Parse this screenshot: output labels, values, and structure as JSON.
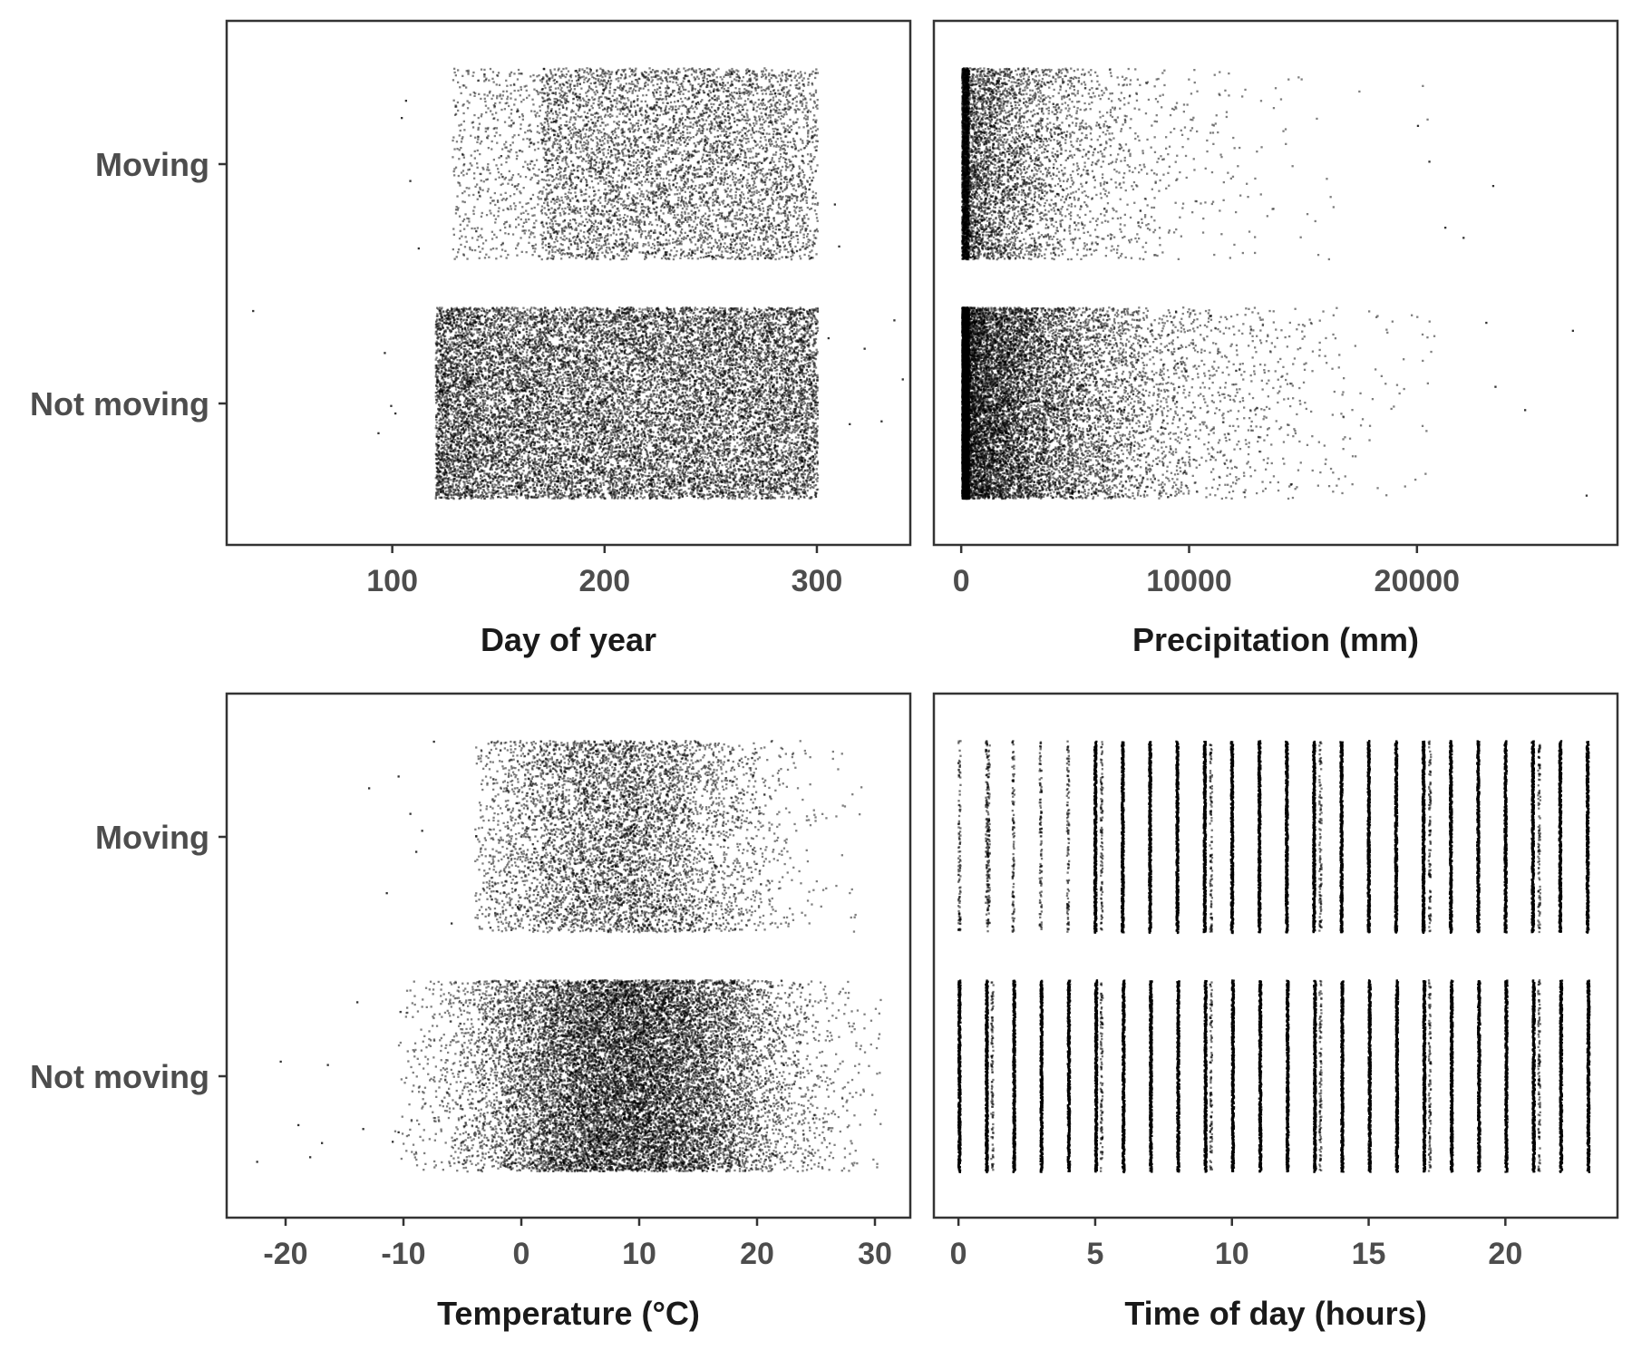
{
  "chart_data": [
    {
      "type": "scatter",
      "jitter": true,
      "xlabel": "Day of year",
      "ylabel": "",
      "xlim": [
        22,
        344
      ],
      "xticks": [
        100,
        200,
        300
      ],
      "categories": [
        "Not moving",
        "Moving"
      ],
      "grid": false,
      "point_color": "#000000",
      "series": [
        {
          "category": "Moving",
          "count": 6000,
          "core": [
            128,
            287
          ],
          "dense": [
            170,
            300
          ],
          "range": [
            103,
            312
          ],
          "outliers": [
            104,
            106,
            108,
            112,
            310,
            308
          ]
        },
        {
          "category": "Not moving",
          "count": 16000,
          "core": [
            120,
            300
          ],
          "dense": [
            137,
            300
          ],
          "range": [
            92,
            342
          ],
          "outliers": [
            34,
            93,
            96,
            99,
            101,
            305,
            315,
            322,
            330,
            336,
            340
          ]
        }
      ]
    },
    {
      "type": "scatter",
      "jitter": true,
      "xlabel": "Precipitation (mm)",
      "ylabel": "",
      "xlim": [
        -1200,
        28800
      ],
      "xticks": [
        0,
        10000,
        20000
      ],
      "categories": [
        "Not moving",
        "Moving"
      ],
      "grid": false,
      "point_color": "#000000",
      "series": [
        {
          "category": "Moving",
          "count": 6000,
          "scale": 2600,
          "max": 22000,
          "outliers": [
            20000,
            20500,
            21200,
            22000,
            23300
          ]
        },
        {
          "category": "Not moving",
          "count": 16000,
          "scale": 3400,
          "max": 21000,
          "outliers": [
            23000,
            23400,
            24700,
            26800,
            27400
          ]
        }
      ]
    },
    {
      "type": "scatter",
      "jitter": true,
      "xlabel": "Temperature (°C)",
      "ylabel": "",
      "xlim": [
        -25,
        33
      ],
      "xticks": [
        -20,
        -10,
        0,
        10,
        20,
        30
      ],
      "categories": [
        "Not moving",
        "Moving"
      ],
      "grid": false,
      "point_color": "#000000",
      "series": [
        {
          "category": "Moving",
          "count": 6000,
          "mean": 8,
          "sd": 6.2,
          "range": [
            -4,
            29
          ],
          "outliers": [
            -13,
            -11.5,
            -10.5,
            -9.5,
            -9,
            -8.5,
            -7.5,
            -6
          ]
        },
        {
          "category": "Not moving",
          "count": 16000,
          "mean": 9,
          "sd": 7.0,
          "range": [
            -11,
            30.5
          ],
          "outliers": [
            -22.5,
            -20.5,
            -19,
            -18,
            -17,
            -16.5,
            -14,
            -13.5,
            -11,
            -10.5
          ]
        }
      ]
    },
    {
      "type": "scatter",
      "jitter": true,
      "xlabel": "Time of day (hours)",
      "ylabel": "",
      "xlim": [
        -0.9,
        24.1
      ],
      "xticks": [
        0,
        5,
        10,
        15,
        20
      ],
      "categories": [
        "Not moving",
        "Moving"
      ],
      "grid": false,
      "point_color": "#000000",
      "series": [
        {
          "category": "Moving",
          "hours": [
            0,
            1,
            1.07,
            1.97,
            2.97,
            3.97,
            4.97,
            5.2,
            5.97,
            6.97,
            7.97,
            8.97,
            9.2,
            9.97,
            10.97,
            11.97,
            12.97,
            13.2,
            13.97,
            14.97,
            15.97,
            16.97,
            17.2,
            17.97,
            18.97,
            19.97,
            20.97,
            21.2,
            21.97,
            22.97
          ],
          "strong": [
            4.97,
            5.97,
            6.97,
            7.97,
            8.97,
            9.97,
            10.97,
            11.97,
            12.97,
            13.97,
            14.97,
            15.97,
            16.97,
            17.97,
            18.97,
            19.97,
            20.97,
            21.97,
            22.97
          ]
        },
        {
          "category": "Not moving",
          "hours": [
            0,
            1,
            1.2,
            2,
            3,
            4,
            5,
            5.2,
            6,
            7,
            8,
            9,
            9.2,
            10,
            11,
            12,
            13,
            13.2,
            14,
            15,
            16,
            17,
            17.2,
            18,
            19,
            20,
            21,
            21.2,
            22,
            23
          ],
          "strong": [
            0,
            1,
            2,
            3,
            4,
            5,
            6,
            7,
            8,
            9,
            10,
            11,
            12,
            13,
            14,
            15,
            16,
            17,
            18,
            19,
            20,
            21,
            22,
            23
          ]
        }
      ]
    }
  ]
}
